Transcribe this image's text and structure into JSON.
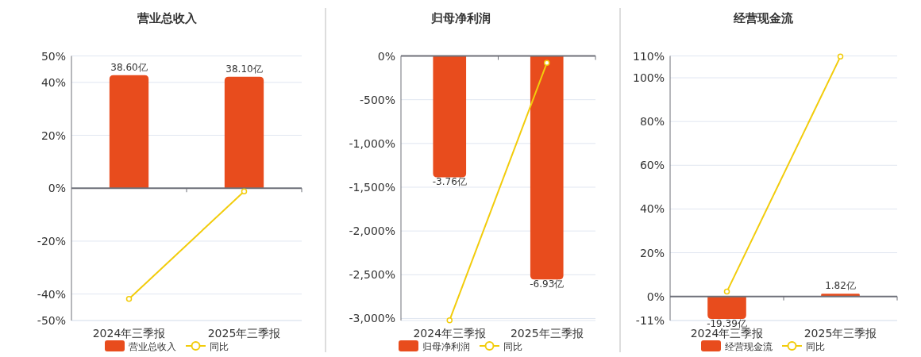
{
  "chart_data": [
    {
      "type": "bar",
      "title": "营业总收入",
      "categories": [
        "2024年三季报",
        "2025年三季报"
      ],
      "series": [
        {
          "name": "营业总收入",
          "color": "#e84c1d",
          "axis": "y2",
          "values": [
            38.6,
            38.1
          ],
          "value_labels": [
            "38.60亿",
            "38.10亿"
          ]
        },
        {
          "name": "同比",
          "type": "line",
          "color": "#f2cc0c",
          "values": [
            -41.8,
            -1.2
          ]
        }
      ],
      "ylim": [
        -50,
        50
      ],
      "yticks": [
        {
          "value": 50,
          "label": "50%"
        },
        {
          "value": 40,
          "label": "40%"
        },
        {
          "value": 20,
          "label": "20%"
        },
        {
          "value": 0,
          "label": "0%"
        },
        {
          "value": -20,
          "label": "-20%"
        },
        {
          "value": -40,
          "label": "-40%"
        },
        {
          "value": -50,
          "label": "-50%"
        }
      ],
      "y2lim": [
        -45.2,
        45.2
      ],
      "grid": "y",
      "legend": "bottom",
      "marker": "circle"
    },
    {
      "type": "bar",
      "title": "归母净利润",
      "categories": [
        "2024年三季报",
        "2025年三季报"
      ],
      "series": [
        {
          "name": "归母净利润",
          "color": "#e84c1d",
          "axis": "y2",
          "values": [
            -3.76,
            -6.93
          ],
          "value_labels": [
            "-3.76亿",
            "-6.93亿"
          ]
        },
        {
          "name": "同比",
          "type": "line",
          "color": "#f2cc0c",
          "values": [
            -3020,
            -80
          ]
        }
      ],
      "ylim": [
        -3023,
        0
      ],
      "yticks": [
        {
          "value": 0,
          "label": "0%"
        },
        {
          "value": -500,
          "label": "-500%"
        },
        {
          "value": -1000,
          "label": "-1,000%"
        },
        {
          "value": -1500,
          "label": "-1,500%"
        },
        {
          "value": -2000,
          "label": "-2,000%"
        },
        {
          "value": -2500,
          "label": "-2,500%"
        },
        {
          "value": -3000,
          "label": "-3,000%"
        }
      ],
      "y2lim": [
        -8.2,
        0
      ],
      "grid": "y",
      "legend": "bottom",
      "marker": "circle"
    },
    {
      "type": "bar",
      "title": "经营现金流",
      "categories": [
        "2024年三季报",
        "2025年三季报"
      ],
      "series": [
        {
          "name": "经营现金流",
          "color": "#e84c1d",
          "axis": "y2",
          "values": [
            -19.39,
            1.82
          ],
          "value_labels": [
            "-19.39亿",
            "1.82亿"
          ]
        },
        {
          "name": "同比",
          "type": "line",
          "color": "#f2cc0c",
          "values": [
            2.2,
            109.7
          ]
        }
      ],
      "ylim": [
        -11,
        110
      ],
      "yticks": [
        {
          "value": 110,
          "label": "110%"
        },
        {
          "value": 100,
          "label": "100%"
        },
        {
          "value": 80,
          "label": "80%"
        },
        {
          "value": 60,
          "label": "60%"
        },
        {
          "value": 40,
          "label": "40%"
        },
        {
          "value": 20,
          "label": "20%"
        },
        {
          "value": 0,
          "label": "0%"
        },
        {
          "value": -11,
          "label": "-11%"
        }
      ],
      "y2lim": [
        -20.7,
        202
      ],
      "grid": "y",
      "legend": "bottom",
      "marker": "circle"
    }
  ]
}
